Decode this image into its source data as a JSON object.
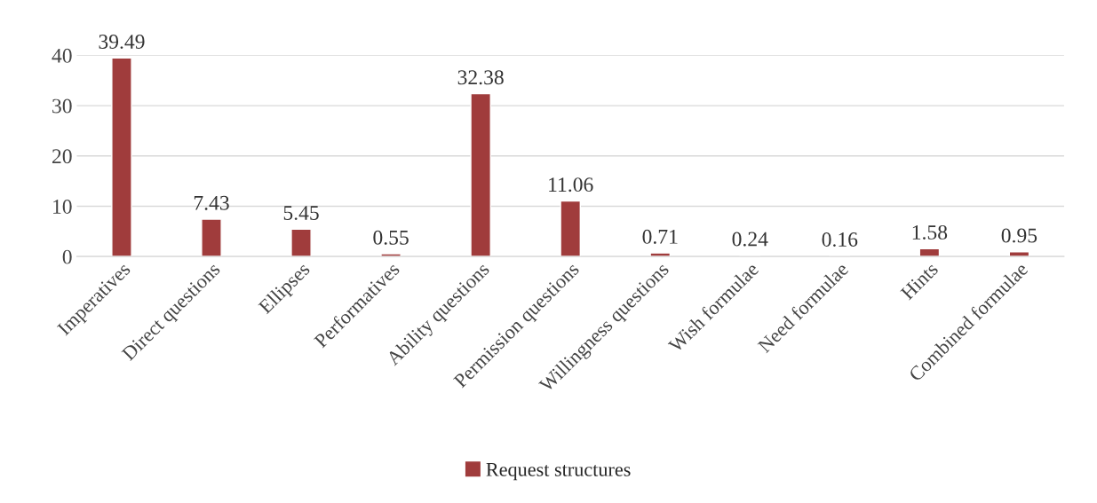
{
  "chart_data": {
    "type": "bar",
    "categories": [
      "Imperatives",
      "Direct questions",
      "Ellipses",
      "Performatives",
      "Ability questions",
      "Permission questions",
      "Willingness questions",
      "Wish formulae",
      "Need formulae",
      "Hints",
      "Combined formulae"
    ],
    "series": [
      {
        "name": "Request structures",
        "color": "#a03c3c",
        "values": [
          39.49,
          7.43,
          5.45,
          0.55,
          32.38,
          11.06,
          0.71,
          0.24,
          0.16,
          1.58,
          0.95
        ]
      }
    ],
    "ylim": [
      0,
      40
    ],
    "yticks": [
      0,
      10,
      20,
      30,
      40
    ],
    "grid": "y",
    "legend": "bottom",
    "data_labels": true
  }
}
